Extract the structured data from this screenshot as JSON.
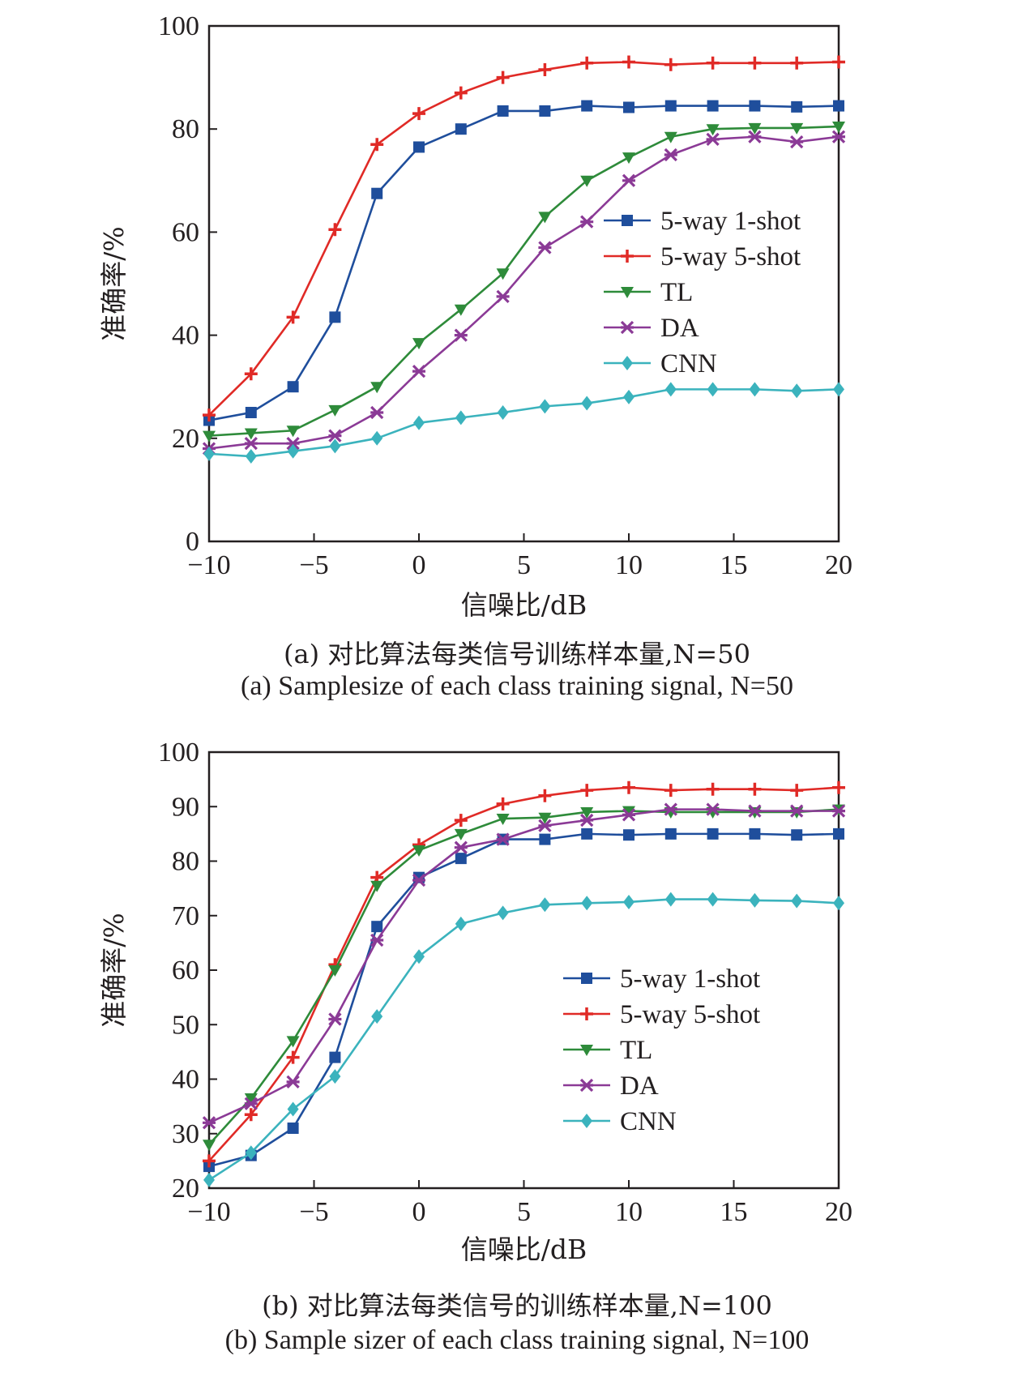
{
  "chart_data": [
    {
      "type": "line",
      "title": "",
      "xlabel": "信噪比/dB",
      "ylabel": "准确率/%",
      "xlim": [
        -10,
        20
      ],
      "ylim": [
        0,
        100
      ],
      "xticks": [
        "−10",
        "−5",
        "0",
        "5",
        "10",
        "15",
        "20"
      ],
      "yticks": [
        "0",
        "20",
        "40",
        "60",
        "80",
        "100"
      ],
      "x": [
        -10,
        -8,
        -6,
        -4,
        -2,
        0,
        2,
        4,
        6,
        8,
        10,
        12,
        14,
        16,
        18,
        20
      ],
      "legend_position": "right-middle",
      "series": [
        {
          "name": "5-way 1-shot",
          "color": "#1f4e9c",
          "marker": "square",
          "values": [
            23.5,
            25,
            30,
            43.5,
            67.5,
            76.5,
            80,
            83.5,
            83.5,
            84.5,
            84.2,
            84.5,
            84.5,
            84.5,
            84.3,
            84.5
          ]
        },
        {
          "name": "5-way 5-shot",
          "color": "#e02a26",
          "marker": "plus",
          "values": [
            24.5,
            32.5,
            43.5,
            60.5,
            77,
            83,
            87,
            90,
            91.5,
            92.8,
            93,
            92.5,
            92.8,
            92.8,
            92.8,
            93
          ]
        },
        {
          "name": "TL",
          "color": "#2e8b3a",
          "marker": "triangle-down",
          "values": [
            20.5,
            21,
            21.5,
            25.5,
            30,
            38.5,
            45,
            52,
            63,
            70,
            74.5,
            78.5,
            80,
            80.2,
            80.2,
            80.5
          ]
        },
        {
          "name": "DA",
          "color": "#8b3a96",
          "marker": "asterisk",
          "values": [
            18,
            19,
            19,
            20.5,
            25,
            33,
            40,
            47.5,
            57,
            62,
            70,
            75,
            78,
            78.5,
            77.5,
            78.5
          ]
        },
        {
          "name": "CNN",
          "color": "#3bb3bd",
          "marker": "diamond",
          "values": [
            17,
            16.5,
            17.5,
            18.5,
            20,
            23,
            24,
            25,
            26.2,
            26.8,
            28,
            29.5,
            29.5,
            29.5,
            29.2,
            29.5
          ]
        }
      ]
    },
    {
      "type": "line",
      "title": "",
      "xlabel": "信噪比/dB",
      "ylabel": "准确率/%",
      "xlim": [
        -10,
        20
      ],
      "ylim": [
        20,
        100
      ],
      "xticks": [
        "−10",
        "−5",
        "0",
        "5",
        "10",
        "15",
        "20"
      ],
      "yticks": [
        "20",
        "30",
        "40",
        "50",
        "60",
        "70",
        "80",
        "90",
        "100"
      ],
      "x": [
        -10,
        -8,
        -6,
        -4,
        -2,
        0,
        2,
        4,
        6,
        8,
        10,
        12,
        14,
        16,
        18,
        20
      ],
      "legend_position": "right-lower",
      "series": [
        {
          "name": "5-way 1-shot",
          "color": "#1f4e9c",
          "marker": "square",
          "values": [
            24,
            26,
            31,
            44,
            68,
            77,
            80.5,
            84,
            84,
            85,
            84.8,
            85,
            85,
            85,
            84.8,
            85
          ]
        },
        {
          "name": "5-way 5-shot",
          "color": "#e02a26",
          "marker": "plus",
          "values": [
            25,
            33.5,
            44,
            61,
            77,
            83,
            87.5,
            90.5,
            92,
            93,
            93.5,
            93,
            93.2,
            93.2,
            93,
            93.5
          ]
        },
        {
          "name": "TL",
          "color": "#2e8b3a",
          "marker": "triangle-down",
          "values": [
            28,
            36.5,
            47,
            60,
            75.5,
            82,
            85,
            87.8,
            88,
            89,
            89.2,
            89,
            89,
            89,
            89,
            89.5
          ]
        },
        {
          "name": "DA",
          "color": "#8b3a96",
          "marker": "asterisk",
          "values": [
            32,
            35.5,
            39.5,
            51,
            65.5,
            76.5,
            82.5,
            84,
            86.5,
            87.5,
            88.5,
            89.5,
            89.5,
            89.2,
            89.2,
            89.2
          ]
        },
        {
          "name": "CNN",
          "color": "#3bb3bd",
          "marker": "diamond",
          "values": [
            21.5,
            26.5,
            34.5,
            40.5,
            51.5,
            62.5,
            68.5,
            70.5,
            72,
            72.3,
            72.5,
            73,
            73,
            72.8,
            72.7,
            72.3
          ]
        }
      ]
    }
  ],
  "captions": {
    "a_cn": "(a) 对比算法每类信号训练样本量,N=50",
    "a_en": "(a) Samplesize of each class training signal, N=50",
    "b_cn": "(b) 对比算法每类信号的训练样本量,N=100",
    "b_en": "(b) Sample sizer of each class training signal, N=100"
  }
}
